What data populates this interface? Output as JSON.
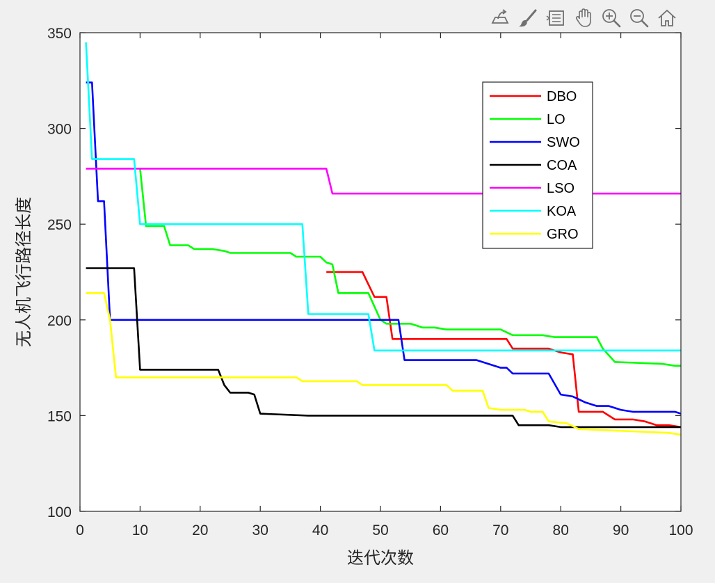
{
  "toolbar": {
    "icons": [
      "export-icon",
      "brush-icon",
      "legend-icon",
      "pan-icon",
      "zoom-in-icon",
      "zoom-out-icon",
      "home-icon"
    ]
  },
  "chart_data": {
    "type": "line",
    "title": "",
    "xlabel": "迭代次数",
    "ylabel": "无人机飞行路径长度",
    "xlim": [
      0,
      100
    ],
    "ylim": [
      100,
      350
    ],
    "xticks": [
      0,
      10,
      20,
      30,
      40,
      50,
      60,
      70,
      80,
      90,
      100
    ],
    "yticks": [
      100,
      150,
      200,
      250,
      300,
      350
    ],
    "grid": false,
    "legend_position": "top-right",
    "series": [
      {
        "name": "DBO",
        "color": "#ff0000",
        "points": [
          [
            41,
            225
          ],
          [
            47,
            225
          ],
          [
            49,
            212
          ],
          [
            51,
            212
          ],
          [
            52,
            190
          ],
          [
            54,
            190
          ],
          [
            68,
            190
          ],
          [
            71,
            190
          ],
          [
            72,
            185
          ],
          [
            78,
            185
          ],
          [
            80,
            183
          ],
          [
            82,
            182
          ],
          [
            83,
            152
          ],
          [
            85,
            152
          ],
          [
            87,
            152
          ],
          [
            89,
            148
          ],
          [
            92,
            148
          ],
          [
            94,
            147
          ],
          [
            96,
            145
          ],
          [
            98,
            145
          ],
          [
            100,
            144
          ]
        ]
      },
      {
        "name": "LO",
        "color": "#00ff00",
        "points": [
          [
            10,
            279
          ],
          [
            11,
            249
          ],
          [
            14,
            249
          ],
          [
            15,
            239
          ],
          [
            18,
            239
          ],
          [
            19,
            237
          ],
          [
            22,
            237
          ],
          [
            24,
            236
          ],
          [
            25,
            235
          ],
          [
            35,
            235
          ],
          [
            36,
            233
          ],
          [
            40,
            233
          ],
          [
            41,
            230
          ],
          [
            42,
            229
          ],
          [
            43,
            214
          ],
          [
            48,
            214
          ],
          [
            50,
            200
          ],
          [
            51,
            198
          ],
          [
            55,
            198
          ],
          [
            57,
            196
          ],
          [
            59,
            196
          ],
          [
            61,
            195
          ],
          [
            70,
            195
          ],
          [
            72,
            192
          ],
          [
            77,
            192
          ],
          [
            79,
            191
          ],
          [
            86,
            191
          ],
          [
            87,
            185
          ],
          [
            89,
            178
          ],
          [
            97,
            177
          ],
          [
            99,
            176
          ],
          [
            100,
            176
          ]
        ]
      },
      {
        "name": "SWO",
        "color": "#0000ff",
        "points": [
          [
            1,
            324
          ],
          [
            2,
            324
          ],
          [
            3,
            262
          ],
          [
            4,
            262
          ],
          [
            5,
            200
          ],
          [
            6,
            200
          ],
          [
            52,
            200
          ],
          [
            53,
            200
          ],
          [
            54,
            179
          ],
          [
            56,
            179
          ],
          [
            66,
            179
          ],
          [
            68,
            177
          ],
          [
            70,
            175
          ],
          [
            71,
            175
          ],
          [
            72,
            172
          ],
          [
            78,
            172
          ],
          [
            80,
            161
          ],
          [
            82,
            160
          ],
          [
            84,
            157
          ],
          [
            86,
            155
          ],
          [
            88,
            155
          ],
          [
            90,
            153
          ],
          [
            92,
            152
          ],
          [
            99,
            152
          ],
          [
            100,
            151
          ]
        ]
      },
      {
        "name": "COA",
        "color": "#000000",
        "points": [
          [
            1,
            227
          ],
          [
            9,
            227
          ],
          [
            10,
            174
          ],
          [
            11,
            174
          ],
          [
            23,
            174
          ],
          [
            24,
            166
          ],
          [
            25,
            162
          ],
          [
            28,
            162
          ],
          [
            29,
            161
          ],
          [
            30,
            151
          ],
          [
            38,
            150
          ],
          [
            40,
            150
          ],
          [
            72,
            150
          ],
          [
            73,
            145
          ],
          [
            78,
            145
          ],
          [
            80,
            144
          ],
          [
            100,
            144
          ]
        ]
      },
      {
        "name": "LSO",
        "color": "#ff00ff",
        "points": [
          [
            1,
            279
          ],
          [
            41,
            279
          ],
          [
            42,
            266
          ],
          [
            100,
            266
          ]
        ]
      },
      {
        "name": "KOA",
        "color": "#00ffff",
        "points": [
          [
            1,
            345
          ],
          [
            2,
            284
          ],
          [
            9,
            284
          ],
          [
            10,
            250
          ],
          [
            11,
            250
          ],
          [
            37,
            250
          ],
          [
            38,
            203
          ],
          [
            47,
            203
          ],
          [
            48,
            203
          ],
          [
            49,
            184
          ],
          [
            100,
            184
          ]
        ]
      },
      {
        "name": "GRO",
        "color": "#ffff00",
        "points": [
          [
            1,
            214
          ],
          [
            4,
            214
          ],
          [
            5,
            200
          ],
          [
            6,
            170
          ],
          [
            10,
            170
          ],
          [
            36,
            170
          ],
          [
            37,
            168
          ],
          [
            46,
            168
          ],
          [
            47,
            166
          ],
          [
            61,
            166
          ],
          [
            62,
            163
          ],
          [
            67,
            163
          ],
          [
            68,
            154
          ],
          [
            70,
            153
          ],
          [
            74,
            153
          ],
          [
            75,
            152
          ],
          [
            77,
            152
          ],
          [
            78,
            147
          ],
          [
            81,
            146
          ],
          [
            83,
            143
          ],
          [
            98,
            141
          ],
          [
            100,
            140
          ]
        ]
      }
    ]
  }
}
